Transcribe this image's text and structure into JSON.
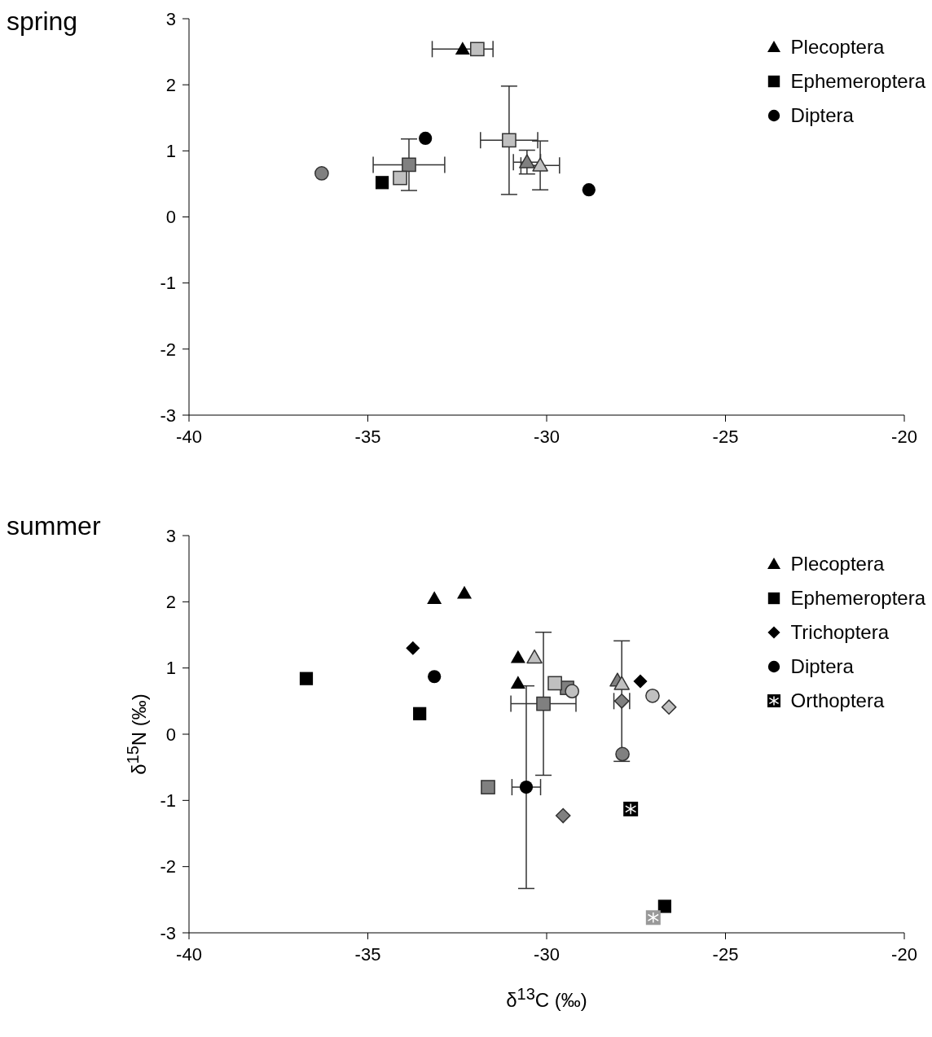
{
  "chart_data": [
    {
      "type": "scatter",
      "title": "spring",
      "xlim": [
        -40,
        -20
      ],
      "xticks": [
        -40,
        -35,
        -30,
        -25,
        -20
      ],
      "ylim": [
        -3,
        3
      ],
      "yticks": [
        -3,
        -2,
        -1,
        0,
        1,
        2,
        3
      ],
      "legend": "top right",
      "series": [
        {
          "name": "Plecoptera",
          "color": "#000000",
          "marker": "triangle",
          "x": [
            -32.35
          ],
          "values": [
            2.54
          ],
          "xerrors": [
            0.85
          ]
        },
        {
          "color": "#808080",
          "marker": "triangle",
          "x": [
            -30.55
          ],
          "values": [
            0.83
          ],
          "errors": [
            0.18
          ],
          "xerrors": [
            0.38
          ]
        },
        {
          "color": "#c0c0c0",
          "marker": "triangle",
          "x": [
            -30.18
          ],
          "values": [
            0.78
          ],
          "errors": [
            0.37
          ],
          "xerrors": [
            0.54
          ]
        },
        {
          "name": "Ephemeroptera",
          "color": "#000000",
          "marker": "square",
          "x": [
            -34.6
          ],
          "values": [
            0.52
          ]
        },
        {
          "color": "#808080",
          "marker": "square",
          "x": [
            -33.85
          ],
          "values": [
            0.79
          ],
          "errors": [
            0.39
          ],
          "xerrors": [
            1.0
          ]
        },
        {
          "color": "#c0c0c0",
          "marker": "square",
          "x": [
            -31.94,
            -34.1,
            -31.05
          ],
          "values": [
            2.54,
            0.59,
            1.16
          ],
          "errors": [
            null,
            null,
            0.82
          ],
          "xerrors": [
            null,
            null,
            0.8
          ]
        },
        {
          "name": "Diptera",
          "color": "#000000",
          "marker": "circle",
          "x": [
            -33.39,
            -28.82
          ],
          "values": [
            1.19,
            0.41
          ]
        },
        {
          "color": "#808080",
          "marker": "circle",
          "x": [
            -36.29
          ],
          "values": [
            0.66
          ]
        }
      ]
    },
    {
      "type": "scatter",
      "title": "summer",
      "xlabel": "δ$^{13}$C (‰)",
      "ylabel": "δ$^{15}$N (‰)",
      "xlim": [
        -40,
        -20
      ],
      "xticks": [
        -40,
        -35,
        -30,
        -25,
        -20
      ],
      "ylim": [
        -3,
        3
      ],
      "yticks": [
        -3,
        -2,
        -1,
        0,
        1,
        2,
        3
      ],
      "legend": "top right",
      "series": [
        {
          "name": "Plecoptera",
          "color": "#000000",
          "marker": "triangle",
          "x": [
            -33.14,
            -32.3,
            -30.8,
            -30.8
          ],
          "values": [
            2.05,
            2.13,
            1.16,
            0.77
          ]
        },
        {
          "color": "#808080",
          "marker": "triangle",
          "x": [
            -28.02
          ],
          "values": [
            0.81
          ]
        },
        {
          "color": "#c0c0c0",
          "marker": "triangle",
          "x": [
            -30.34,
            -27.9
          ],
          "values": [
            1.16,
            0.76
          ]
        },
        {
          "name": "Ephemeroptera",
          "color": "#000000",
          "marker": "square",
          "x": [
            -36.72,
            -33.55,
            -26.7
          ],
          "values": [
            0.84,
            0.31,
            -2.6
          ]
        },
        {
          "color": "#808080",
          "marker": "square",
          "x": [
            -31.64,
            -29.43,
            -30.09
          ],
          "values": [
            -0.8,
            0.7,
            0.46
          ],
          "errors": [
            null,
            null,
            1.08
          ],
          "xerrors": [
            null,
            null,
            0.91
          ]
        },
        {
          "color": "#c0c0c0",
          "marker": "square",
          "x": [
            -29.77
          ],
          "values": [
            0.77
          ]
        },
        {
          "name": "Trichoptera",
          "color": "#000000",
          "marker": "diamond",
          "x": [
            -33.74,
            -27.38
          ],
          "values": [
            1.3,
            0.8
          ]
        },
        {
          "color": "#808080",
          "marker": "diamond",
          "x": [
            -29.54,
            -27.9
          ],
          "values": [
            -1.23,
            0.5
          ],
          "errors": [
            null,
            0.91
          ],
          "xerrors": [
            null,
            0.22
          ]
        },
        {
          "color": "#c0c0c0",
          "marker": "diamond",
          "x": [
            -26.58
          ],
          "values": [
            0.41
          ]
        },
        {
          "name": "Diptera",
          "color": "#000000",
          "marker": "circle",
          "x": [
            -33.14,
            -30.57
          ],
          "values": [
            0.87,
            -0.8
          ],
          "errors": [
            null,
            1.53
          ],
          "xerrors": [
            null,
            0.4
          ]
        },
        {
          "color": "#808080",
          "marker": "circle",
          "x": [
            -27.88
          ],
          "values": [
            -0.3
          ]
        },
        {
          "color": "#c0c0c0",
          "marker": "circle",
          "x": [
            -29.29,
            -27.04
          ],
          "values": [
            0.65,
            0.58
          ]
        },
        {
          "name": "Orthoptera",
          "color": "#000000",
          "x": [
            -27.65
          ],
          "values": [
            -1.13
          ]
        },
        {
          "color": "#999999",
          "x": [
            -27.02
          ],
          "values": [
            -2.77
          ]
        }
      ]
    }
  ]
}
